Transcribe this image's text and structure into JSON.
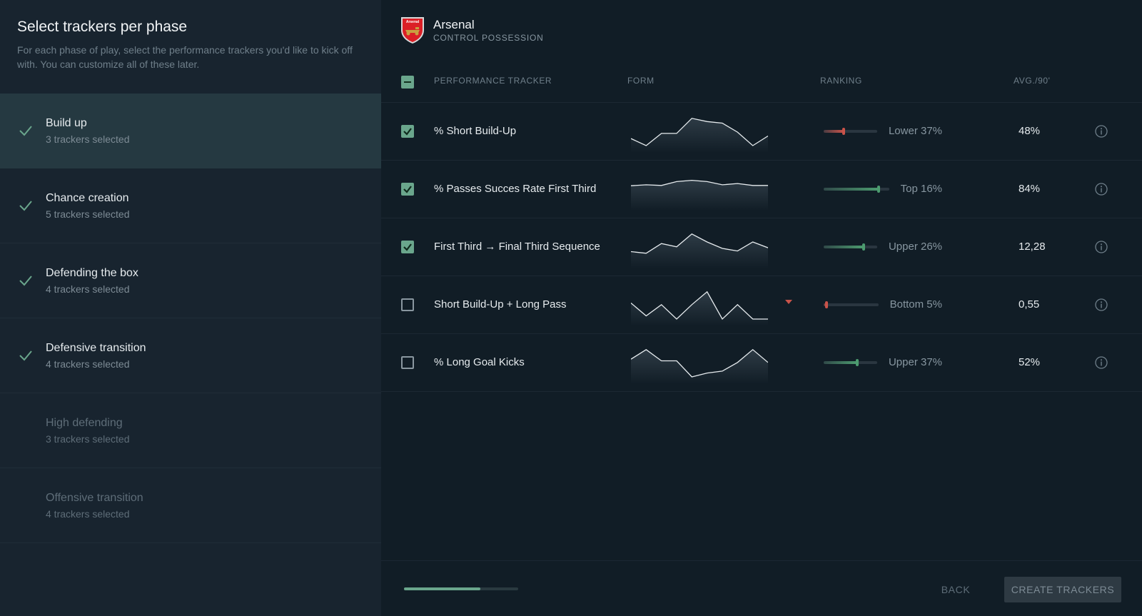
{
  "sidebar": {
    "title": "Select trackers per phase",
    "description": "For each phase of play, select the performance trackers you'd like to kick off with. You can customize all of these later.",
    "phases": [
      {
        "name": "Build up",
        "count": "3 trackers selected",
        "checked": true,
        "active": true
      },
      {
        "name": "Chance creation",
        "count": "5 trackers selected",
        "checked": true,
        "active": false
      },
      {
        "name": "Defending the box",
        "count": "4 trackers selected",
        "checked": true,
        "active": false
      },
      {
        "name": "Defensive transition",
        "count": "4 trackers selected",
        "checked": true,
        "active": false
      },
      {
        "name": "High defending",
        "count": "3 trackers selected",
        "checked": false,
        "active": false
      },
      {
        "name": "Offensive transition",
        "count": "4 trackers selected",
        "checked": false,
        "active": false
      }
    ]
  },
  "team": {
    "name": "Arsenal",
    "subtitle": "CONTROL POSSESSION",
    "crest_icon": "arsenal-crest-icon"
  },
  "table": {
    "headers": {
      "tracker": "PERFORMANCE TRACKER",
      "form": "FORM",
      "ranking": "RANKING",
      "avg": "AVG./90'"
    },
    "rows": [
      {
        "name": "% Short Build-Up",
        "checked": true,
        "form": [
          0.22,
          0.0,
          0.38,
          0.38,
          0.85,
          0.75,
          0.7,
          0.42,
          0.0,
          0.3
        ],
        "rank_label": "Lower 37%",
        "rank_fraction": 0.37,
        "rank_color": "#c9534a",
        "avg": "48%",
        "trend_down": false
      },
      {
        "name": "% Passes Succes Rate First Third",
        "checked": true,
        "form": [
          0.55,
          0.58,
          0.56,
          0.68,
          0.72,
          0.68,
          0.58,
          0.62,
          0.56,
          0.56
        ],
        "rank_label": "Top 16%",
        "rank_fraction": 0.84,
        "rank_color": "#4c9b6f",
        "avg": "84%",
        "trend_down": false
      },
      {
        "name": "First Third → Final Third Sequence",
        "checked": true,
        "form": [
          0.3,
          0.25,
          0.55,
          0.45,
          0.85,
          0.6,
          0.4,
          0.32,
          0.6,
          0.42
        ],
        "rank_label": "Upper 26%",
        "rank_fraction": 0.74,
        "rank_color": "#4c9b6f",
        "avg": "12,28",
        "trend_down": false
      },
      {
        "name": "Short Build-Up + Long Pass",
        "checked": false,
        "form": [
          0.5,
          0.1,
          0.45,
          0.0,
          0.45,
          0.85,
          0.0,
          0.45,
          0.0,
          0.0
        ],
        "rank_label": "Bottom 5%",
        "rank_fraction": 0.05,
        "rank_color": "#c9534a",
        "avg": "0,55",
        "trend_down": true
      },
      {
        "name": "% Long Goal Kicks",
        "checked": false,
        "form": [
          0.55,
          0.85,
          0.5,
          0.5,
          0.0,
          0.12,
          0.18,
          0.45,
          0.85,
          0.45
        ],
        "rank_label": "Upper 37%",
        "rank_fraction": 0.63,
        "rank_color": "#4c9b6f",
        "avg": "52%",
        "trend_down": false
      }
    ]
  },
  "footer": {
    "progress": 0.67,
    "back_label": "BACK",
    "create_label": "CREATE TRACKERS"
  }
}
